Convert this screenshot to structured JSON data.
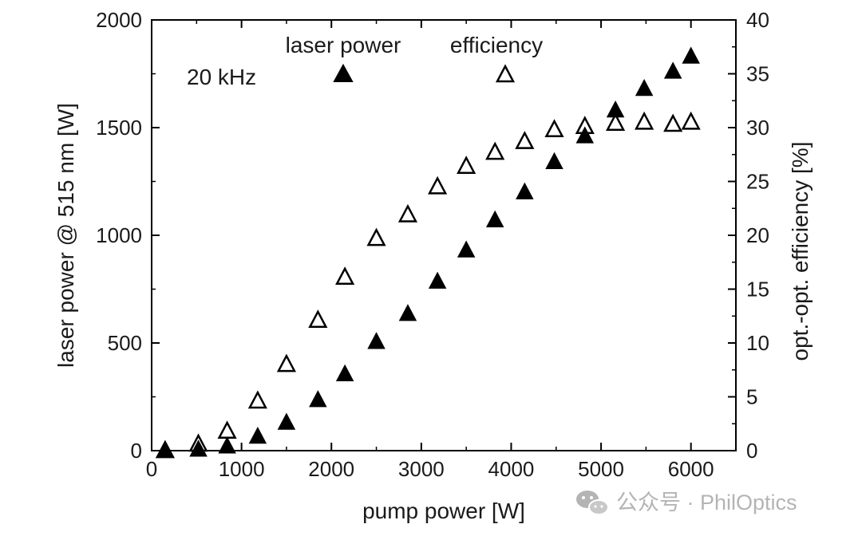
{
  "chart_data": {
    "type": "scatter",
    "xlabel": "pump power [W]",
    "ylabel": "laser power @ 515 nm [W]",
    "y2label": "opt.-opt. efficiency [%]",
    "xlim": [
      0,
      6500
    ],
    "ylim": [
      0,
      2000
    ],
    "y2lim": [
      0,
      40
    ],
    "x_ticks": [
      0,
      1000,
      2000,
      3000,
      4000,
      5000,
      6000
    ],
    "y_ticks": [
      0,
      500,
      1000,
      1500,
      2000
    ],
    "y2_ticks": [
      0,
      5,
      10,
      15,
      20,
      25,
      30,
      35,
      40
    ],
    "annotation": "20 kHz",
    "legend_placement": "top",
    "grid": false,
    "series": [
      {
        "name": "laser power",
        "axis": "left",
        "marker": "filled-triangle",
        "color": "#000000",
        "x": [
          150,
          520,
          840,
          1180,
          1500,
          1850,
          2150,
          2500,
          2850,
          3180,
          3500,
          3820,
          4150,
          4480,
          4820,
          5160,
          5480,
          5800,
          6000
        ],
        "y": [
          0,
          5,
          20,
          65,
          130,
          235,
          355,
          505,
          635,
          785,
          930,
          1070,
          1200,
          1340,
          1460,
          1580,
          1680,
          1760,
          1830
        ]
      },
      {
        "name": "efficiency",
        "axis": "right",
        "marker": "open-triangle",
        "color": "#000000",
        "x": [
          150,
          520,
          840,
          1180,
          1500,
          1850,
          2150,
          2500,
          2850,
          3180,
          3500,
          3820,
          4150,
          4480,
          4820,
          5160,
          5480,
          5800,
          6000
        ],
        "y": [
          0,
          0.6,
          1.8,
          4.6,
          8,
          12.1,
          16.1,
          19.7,
          21.9,
          24.5,
          26.4,
          27.7,
          28.7,
          29.8,
          30.1,
          30.4,
          30.5,
          30.3,
          30.5
        ]
      }
    ]
  },
  "watermark": {
    "text": "公众号 · PhilOptics",
    "icon": "wechat-icon"
  }
}
